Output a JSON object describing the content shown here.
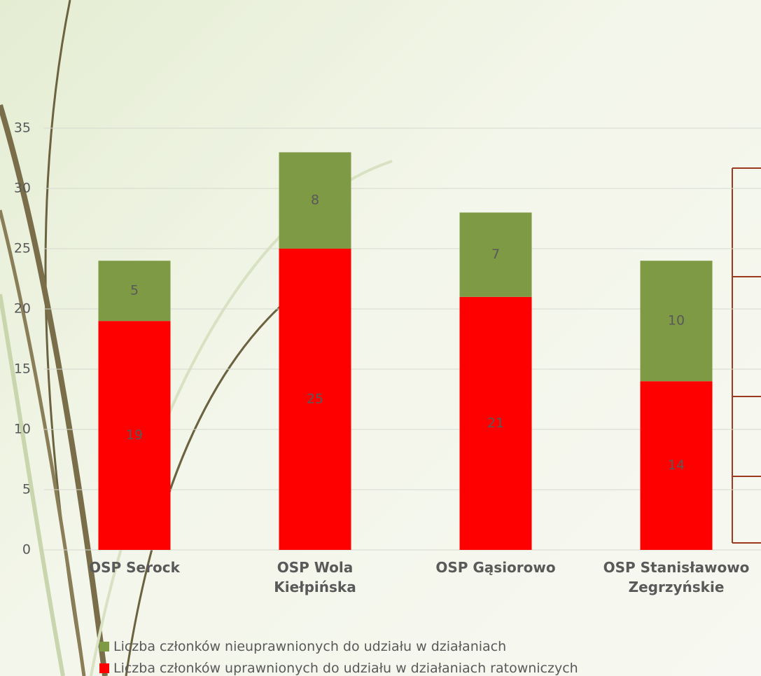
{
  "chart_data": {
    "type": "stacked-bar",
    "categories": [
      "OSP Serock",
      "OSP Wola Kiełpińska",
      "OSP Gąsiorowo",
      "OSP Stanisławowo Zegrzyńskie"
    ],
    "series": [
      {
        "name": "Liczba członków uprawnionych do udziału w działaniach ratowniczych",
        "color": "#ff0000",
        "values": [
          19,
          25,
          21,
          14
        ]
      },
      {
        "name": "Liczba członków nieuprawnionych do udziału w działaniach",
        "color": "#7f9a45",
        "values": [
          5,
          8,
          7,
          10
        ]
      }
    ],
    "ylim": [
      0,
      35
    ],
    "yticks": [
      0,
      5,
      10,
      15,
      20,
      25,
      30,
      35
    ],
    "grid": true,
    "legend": "bottom"
  }
}
